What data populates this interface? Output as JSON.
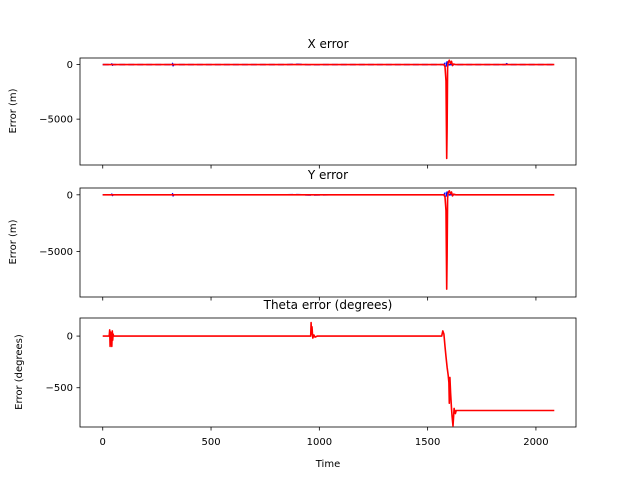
{
  "chart_data": {
    "type": "line",
    "shared_x": {
      "label": "Time",
      "lim": [
        -105,
        2185
      ],
      "ticks": [
        0,
        500,
        1000,
        1500,
        2000
      ],
      "tick_labels": [
        "0",
        "500",
        "1000",
        "1500",
        "2000"
      ]
    },
    "panels": [
      {
        "title": "X error",
        "ylabel": "Error (m)",
        "ylim": [
          -9200,
          600
        ],
        "yticks": [
          0,
          -5000
        ],
        "ytick_labels": [
          "0",
          "−5000"
        ],
        "series": [
          {
            "style": "dashed",
            "color": "#0000ff",
            "x": [
              0,
              40,
              42,
              45,
              48,
              320,
              322,
              325,
              328,
              850,
              900,
              950,
              1050,
              1350,
              1500,
              1575,
              1580,
              1585,
              1590,
              1595,
              1600,
              1610,
              1860,
              1865,
              1870,
              2085
            ],
            "y": [
              0,
              0,
              60,
              -60,
              0,
              0,
              110,
              -110,
              0,
              0,
              20,
              -20,
              0,
              0,
              0,
              0,
              120,
              -150,
              250,
              -100,
              0,
              0,
              0,
              80,
              0,
              0
            ]
          },
          {
            "style": "solid",
            "color": "#ff0000",
            "x": [
              0,
              1575,
              1580,
              1585,
              1588,
              1590,
              1592,
              1595,
              1600,
              1605,
              1610,
              1615,
              1620,
              1630,
              2085
            ],
            "y": [
              0,
              0,
              -200,
              -1500,
              -8600,
              -6000,
              -300,
              200,
              400,
              100,
              300,
              -100,
              50,
              0,
              0
            ]
          }
        ]
      },
      {
        "title": "Y error",
        "ylabel": "Error (m)",
        "ylim": [
          -9000,
          600
        ],
        "yticks": [
          0,
          -5000
        ],
        "ytick_labels": [
          "0",
          "−5000"
        ],
        "series": [
          {
            "style": "dashed",
            "color": "#0000ff",
            "x": [
              0,
              40,
              42,
              45,
              48,
              320,
              322,
              325,
              328,
              850,
              900,
              950,
              1050,
              1350,
              1500,
              1575,
              1580,
              1585,
              1590,
              1595,
              1600,
              1610,
              2085
            ],
            "y": [
              0,
              0,
              60,
              -60,
              0,
              0,
              100,
              -100,
              0,
              0,
              20,
              -20,
              0,
              0,
              0,
              0,
              150,
              -120,
              250,
              -80,
              0,
              0,
              0
            ]
          },
          {
            "style": "solid",
            "color": "#ff0000",
            "x": [
              0,
              1575,
              1580,
              1585,
              1588,
              1590,
              1592,
              1595,
              1600,
              1605,
              1610,
              1615,
              1620,
              1630,
              2085
            ],
            "y": [
              0,
              0,
              -200,
              -1400,
              -8300,
              -5500,
              -300,
              200,
              350,
              100,
              250,
              -100,
              50,
              0,
              0
            ]
          }
        ]
      },
      {
        "title": "Theta error (degrees)",
        "ylabel": "Error (degrees)",
        "ylim": [
          -880,
          175
        ],
        "yticks": [
          0,
          -500
        ],
        "ytick_labels": [
          "0",
          "−500"
        ],
        "series": [
          {
            "style": "solid",
            "color": "#ff0000",
            "x": [
              0,
              30,
              32,
              34,
              36,
              38,
              40,
              42,
              44,
              46,
              48,
              50,
              55,
              960,
              962,
              964,
              966,
              968,
              970,
              975,
              980,
              990,
              1000,
              1565,
              1570,
              1575,
              1580,
              1585,
              1590,
              1595,
              1598,
              1600,
              1603,
              1606,
              1610,
              1613,
              1617,
              1622,
              1628,
              1632,
              1640,
              2085
            ],
            "y": [
              0,
              0,
              60,
              -100,
              40,
              -60,
              30,
              -100,
              50,
              -40,
              20,
              0,
              0,
              0,
              130,
              20,
              90,
              30,
              -20,
              10,
              -10,
              0,
              0,
              0,
              50,
              20,
              -100,
              -200,
              -300,
              -380,
              -450,
              -650,
              -400,
              -550,
              -700,
              -780,
              -870,
              -700,
              -750,
              -720,
              -720,
              -720
            ]
          }
        ]
      }
    ]
  }
}
